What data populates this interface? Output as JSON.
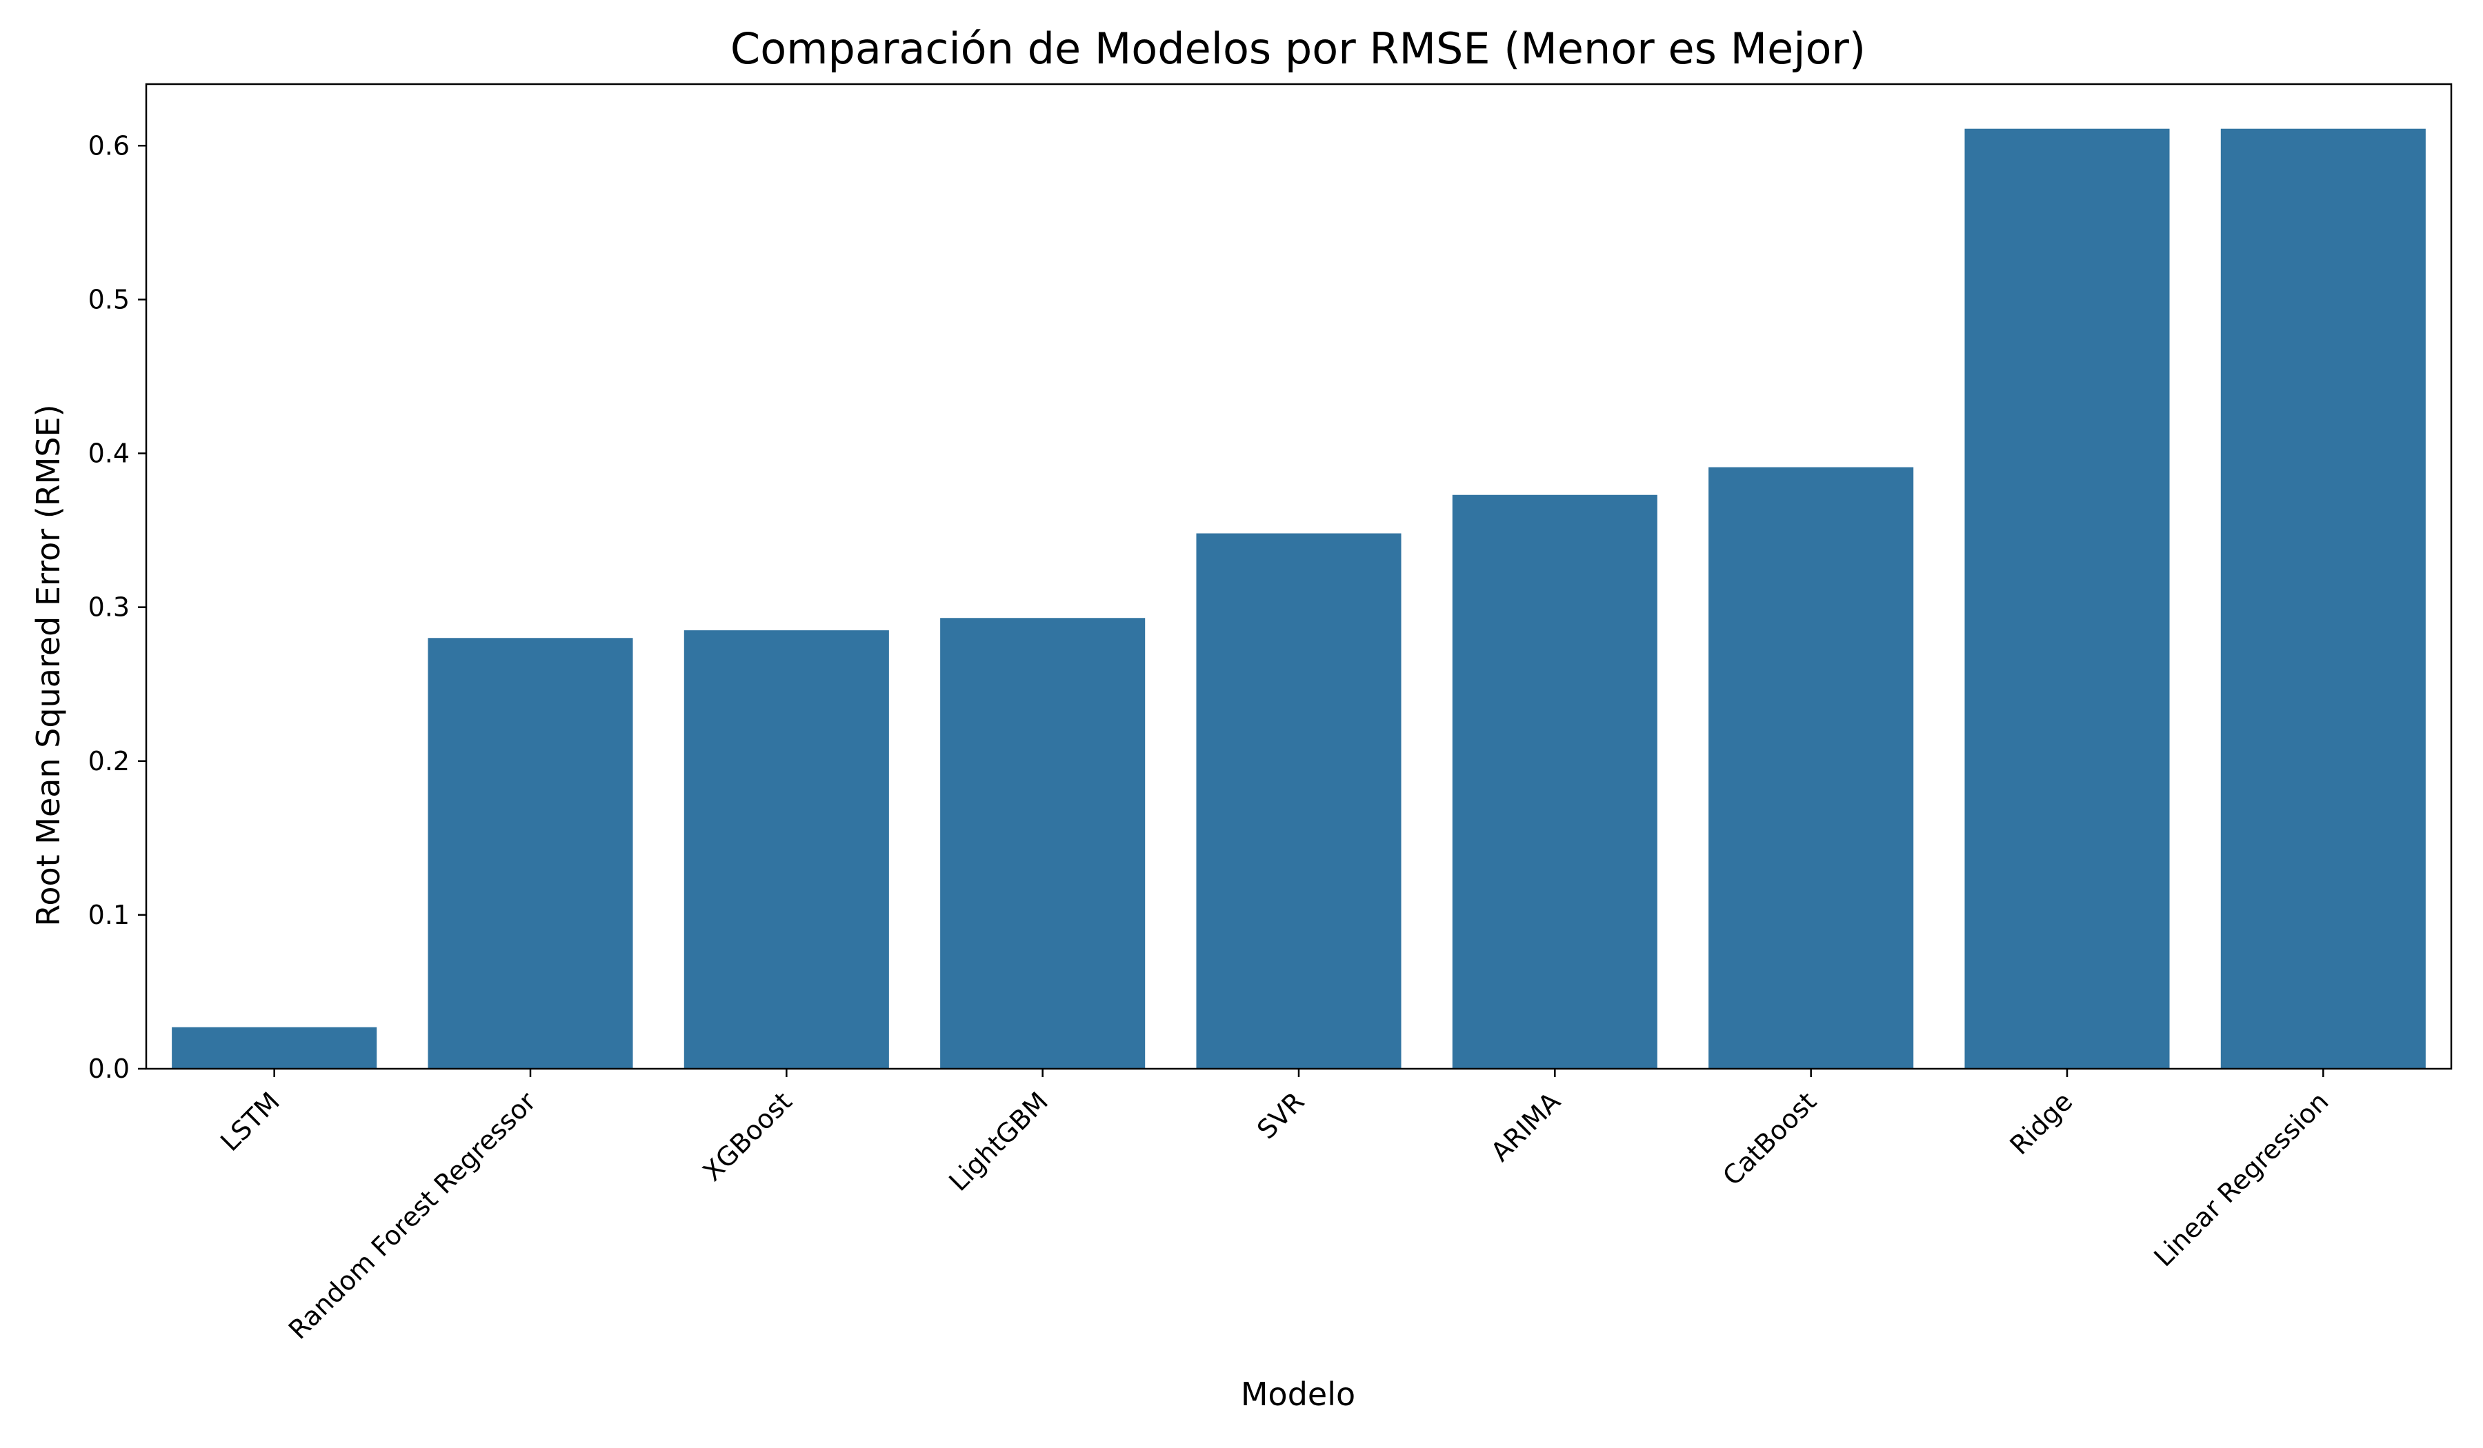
{
  "chart_data": {
    "type": "bar",
    "title": "Comparación de Modelos por RMSE (Menor es Mejor)",
    "xlabel": "Modelo",
    "ylabel": "Root Mean Squared Error (RMSE)",
    "categories": [
      "LSTM",
      "Random Forest Regressor",
      "XGBoost",
      "LightGBM",
      "SVR",
      "ARIMA",
      "CatBoost",
      "Ridge",
      "Linear Regression"
    ],
    "values": [
      0.027,
      0.28,
      0.285,
      0.293,
      0.348,
      0.373,
      0.391,
      0.611,
      0.611
    ],
    "yticks": [
      0.0,
      0.1,
      0.2,
      0.3,
      0.4,
      0.5,
      0.6
    ],
    "ylim": [
      0,
      0.64
    ],
    "grid": false,
    "legend": "none",
    "colors": {
      "bar": "#3274a1",
      "axis": "#000000",
      "background": "#ffffff"
    }
  }
}
